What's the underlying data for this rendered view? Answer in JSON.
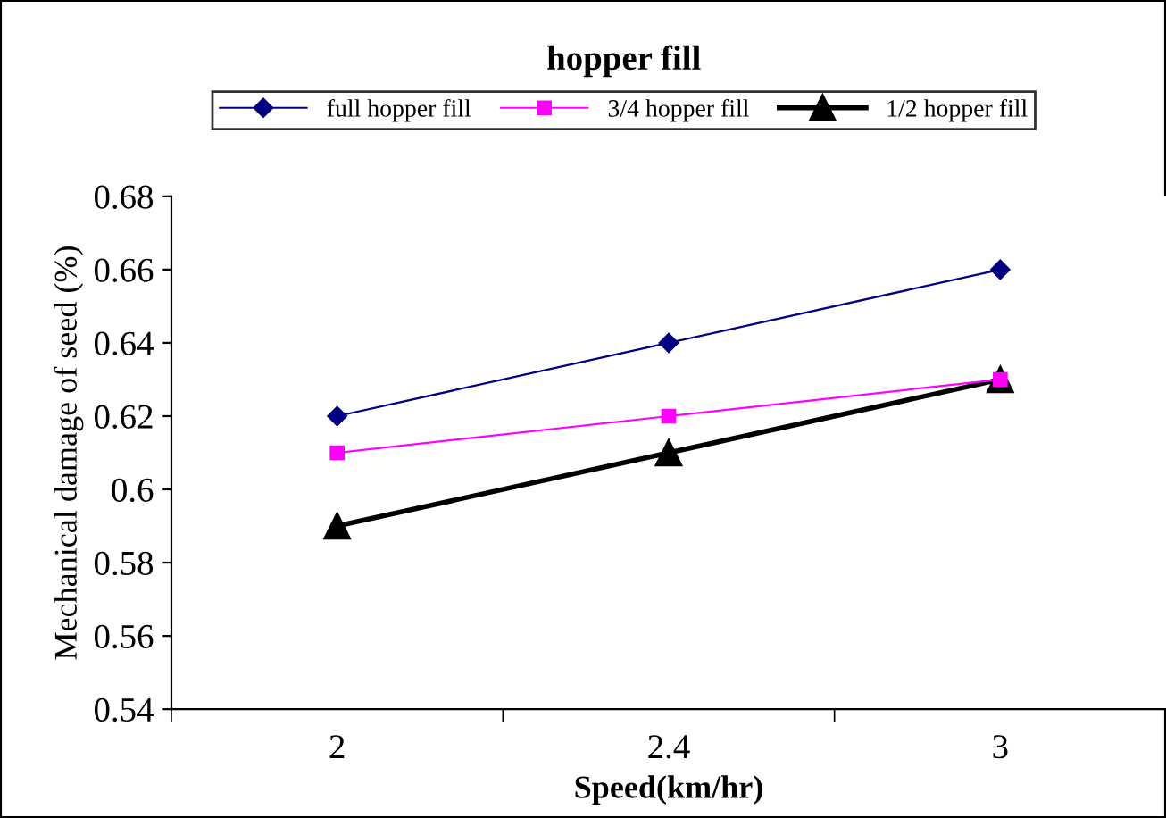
{
  "chart_data": {
    "type": "line",
    "title": "hopper fill",
    "xlabel": "Speed(km/hr)",
    "ylabel": "Mechanical damage of seed (%)",
    "categories": [
      "2",
      "2.4",
      "3"
    ],
    "series": [
      {
        "name": "full hopper fill",
        "color": "#000080",
        "marker": "diamond",
        "values": [
          0.62,
          0.64,
          0.66
        ]
      },
      {
        "name": "3/4 hopper fill",
        "color": "#ff00ff",
        "marker": "square",
        "values": [
          0.61,
          0.62,
          0.63
        ]
      },
      {
        "name": "1/2 hopper fill",
        "color": "#000000",
        "marker": "triangle",
        "values": [
          0.59,
          0.61,
          0.63
        ]
      }
    ],
    "ylim": [
      0.54,
      0.68
    ],
    "yticks": [
      0.54,
      0.56,
      0.58,
      0.6,
      0.62,
      0.64,
      0.66,
      0.68
    ],
    "grid": false,
    "legend": "top",
    "line_style": "solid"
  }
}
